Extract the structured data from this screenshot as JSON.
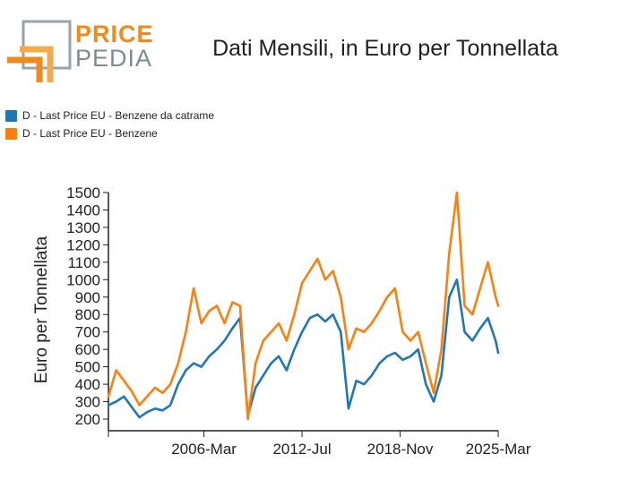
{
  "logo": {
    "word1": "PRICE",
    "word2": "PEDIA"
  },
  "chart_data": {
    "type": "line",
    "title": "Dati Mensili, in Euro per Tonnellata",
    "ylabel": "Euro per Tonnellata",
    "xlabel": "",
    "ylim": [
      150,
      1500
    ],
    "xlim": [
      "2000-01",
      "2025-03"
    ],
    "y_ticks": [
      200,
      300,
      400,
      500,
      600,
      700,
      800,
      900,
      1000,
      1100,
      1200,
      1300,
      1400,
      1500
    ],
    "x_ticks": [
      "2006-Mar",
      "2012-Jul",
      "2018-Nov",
      "2025-Mar"
    ],
    "legend_position": "top-left",
    "grid": false,
    "series": [
      {
        "name": "D - Last Price EU - Benzene da catrame",
        "color": "#1f77b4",
        "x": [
          "2000-01",
          "2000-07",
          "2001-01",
          "2001-07",
          "2002-01",
          "2002-07",
          "2003-01",
          "2003-07",
          "2004-01",
          "2004-07",
          "2005-01",
          "2005-07",
          "2006-01",
          "2006-07",
          "2007-01",
          "2007-07",
          "2008-01",
          "2008-07",
          "2009-01",
          "2009-07",
          "2010-01",
          "2010-07",
          "2011-01",
          "2011-07",
          "2012-01",
          "2012-07",
          "2013-01",
          "2013-07",
          "2014-01",
          "2014-07",
          "2015-01",
          "2015-07",
          "2016-01",
          "2016-07",
          "2017-01",
          "2017-07",
          "2018-01",
          "2018-07",
          "2019-01",
          "2019-07",
          "2020-01",
          "2020-07",
          "2021-01",
          "2021-07",
          "2022-01",
          "2022-07",
          "2023-01",
          "2023-07",
          "2024-01",
          "2024-07",
          "2025-01",
          "2025-03"
        ],
        "y": [
          280,
          300,
          330,
          270,
          210,
          240,
          260,
          250,
          280,
          400,
          480,
          520,
          500,
          560,
          600,
          650,
          720,
          780,
          220,
          380,
          450,
          520,
          560,
          480,
          600,
          700,
          780,
          800,
          760,
          800,
          700,
          260,
          420,
          400,
          450,
          520,
          560,
          580,
          540,
          560,
          600,
          400,
          300,
          450,
          900,
          1000,
          700,
          650,
          720,
          780,
          650,
          580
        ]
      },
      {
        "name": "D - Last Price EU - Benzene",
        "color": "#ff7f0e",
        "x": [
          "2000-01",
          "2000-07",
          "2001-01",
          "2001-07",
          "2002-01",
          "2002-07",
          "2003-01",
          "2003-07",
          "2004-01",
          "2004-07",
          "2005-01",
          "2005-07",
          "2006-01",
          "2006-07",
          "2007-01",
          "2007-07",
          "2008-01",
          "2008-07",
          "2009-01",
          "2009-07",
          "2010-01",
          "2010-07",
          "2011-01",
          "2011-07",
          "2012-01",
          "2012-07",
          "2013-01",
          "2013-07",
          "2014-01",
          "2014-07",
          "2015-01",
          "2015-07",
          "2016-01",
          "2016-07",
          "2017-01",
          "2017-07",
          "2018-01",
          "2018-07",
          "2019-01",
          "2019-07",
          "2020-01",
          "2020-07",
          "2021-01",
          "2021-07",
          "2022-01",
          "2022-07",
          "2023-01",
          "2023-07",
          "2024-01",
          "2024-07",
          "2025-01",
          "2025-03"
        ],
        "y": [
          330,
          480,
          420,
          360,
          280,
          330,
          380,
          350,
          400,
          520,
          700,
          950,
          750,
          820,
          850,
          750,
          870,
          850,
          200,
          520,
          650,
          700,
          750,
          650,
          800,
          980,
          1050,
          1120,
          1000,
          1050,
          900,
          600,
          720,
          700,
          750,
          820,
          900,
          950,
          700,
          650,
          700,
          520,
          350,
          600,
          1150,
          1500,
          850,
          800,
          950,
          1100,
          900,
          850
        ]
      }
    ]
  }
}
